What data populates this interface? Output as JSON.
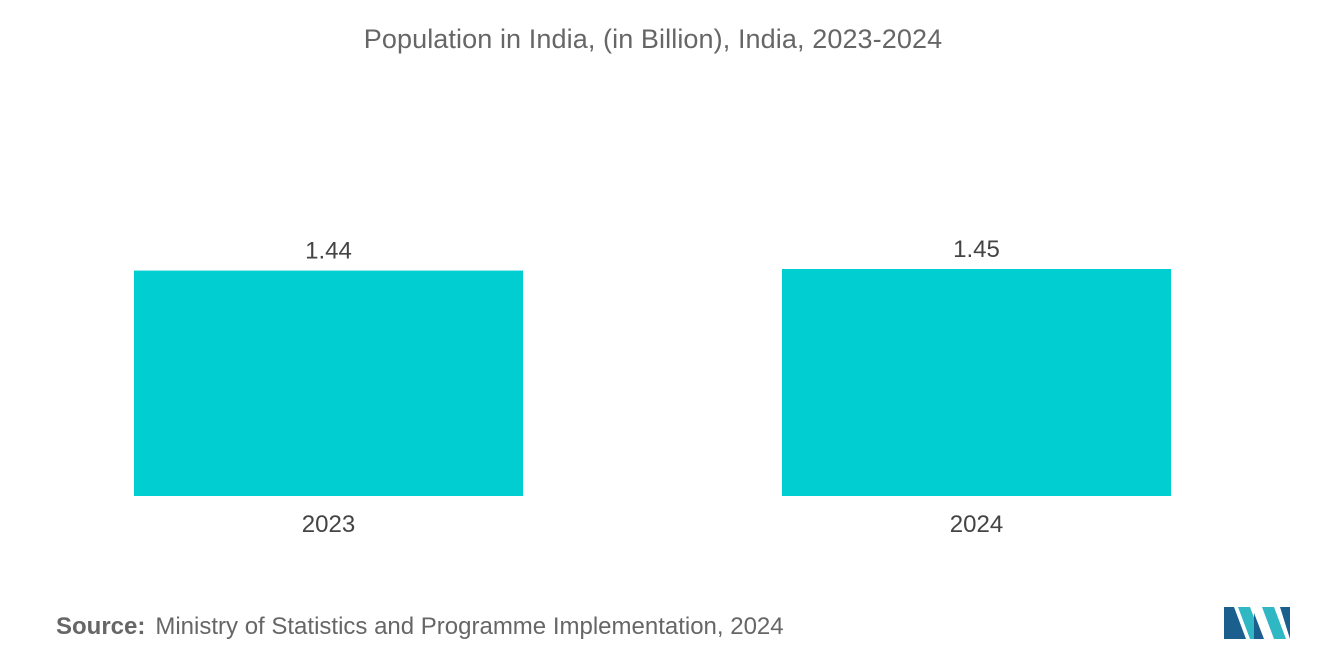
{
  "chart_data": {
    "type": "bar",
    "title": "Population in India, (in Billion), India,  2023-2024",
    "categories": [
      "2023",
      "2024"
    ],
    "values": [
      1.44,
      1.45
    ],
    "value_labels": [
      "1.44",
      "1.45"
    ],
    "xlabel": "",
    "ylabel": "",
    "ylim": [
      0,
      1.45
    ],
    "grid": false,
    "legend": "none",
    "bar_color": "#00CED1"
  },
  "source": {
    "label": "Source:",
    "text": "Ministry of Statistics and Programme Implementation, 2024"
  },
  "logo": {
    "icon": "mordor-logo-icon",
    "colors": [
      "#1B5F8F",
      "#2FB7C4"
    ]
  }
}
